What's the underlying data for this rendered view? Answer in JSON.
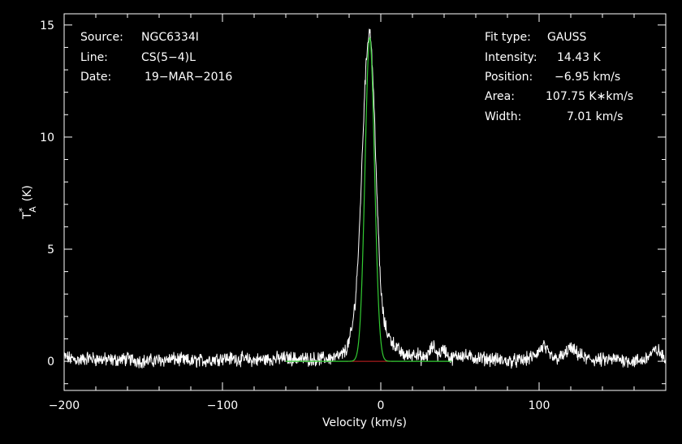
{
  "chart_data": {
    "type": "line",
    "xlabel": "Velocity (km/s)",
    "ylabel_main": "T",
    "ylabel_sup": "*",
    "ylabel_sub": "A",
    "ylabel_unit": "(K)",
    "xlim": [
      -200,
      180
    ],
    "ylim": [
      -1.3,
      15.5
    ],
    "xticks": [
      -200,
      -100,
      0,
      100
    ],
    "xtick_labels": [
      "−200",
      "−100",
      "0",
      "100"
    ],
    "yticks": [
      0,
      5,
      10,
      15
    ],
    "ytick_labels": [
      "0",
      "5",
      "10",
      "15"
    ],
    "grid": false,
    "colors": {
      "background": "#000000",
      "axes": "#ffffff",
      "spectrum": "#ffffff",
      "fit": "#33cc33",
      "baseline": "#cc2222"
    },
    "info_left": [
      {
        "label": "Source:",
        "value": "NGC6334I"
      },
      {
        "label": "Line:",
        "value": "CS(5−4)L"
      },
      {
        "label": "Date:",
        "value": "19−MAR−2016"
      }
    ],
    "info_right": [
      {
        "label": "Fit type:",
        "value": "GAUSS"
      },
      {
        "label": "Intensity:",
        "value": "14.43 K"
      },
      {
        "label": "Position:",
        "value": "−6.95 km/s"
      },
      {
        "label": "Area:",
        "value": "107.75 K∗km/s"
      },
      {
        "label": "Width:",
        "value": "7.01 km/s"
      }
    ],
    "fit": {
      "amplitude": 14.43,
      "center": -6.95,
      "fwhm": 7.01,
      "area": 107.75
    },
    "series": [
      {
        "name": "spectrum",
        "points": [
          [
            -200,
            0.2
          ],
          [
            -195,
            0.1
          ],
          [
            -190,
            0.05
          ],
          [
            -185,
            0.15
          ],
          [
            -180,
            0.1
          ],
          [
            -170,
            0.05
          ],
          [
            -160,
            0.1
          ],
          [
            -150,
            0.0
          ],
          [
            -140,
            0.05
          ],
          [
            -130,
            0.1
          ],
          [
            -120,
            0.0
          ],
          [
            -110,
            0.05
          ],
          [
            -100,
            0.15
          ],
          [
            -90,
            0.1
          ],
          [
            -80,
            0.05
          ],
          [
            -70,
            0.1
          ],
          [
            -60,
            0.15
          ],
          [
            -50,
            0.1
          ],
          [
            -40,
            0.1
          ],
          [
            -30,
            0.15
          ],
          [
            -25,
            0.25
          ],
          [
            -22,
            0.5
          ],
          [
            -20,
            0.9
          ],
          [
            -18,
            1.5
          ],
          [
            -16,
            2.8
          ],
          [
            -14,
            5.0
          ],
          [
            -12,
            8.6
          ],
          [
            -10,
            12.4
          ],
          [
            -8,
            14.5
          ],
          [
            -7,
            14.8
          ],
          [
            -6,
            14.2
          ],
          [
            -4,
            11.0
          ],
          [
            -2,
            6.5
          ],
          [
            0,
            3.2
          ],
          [
            2,
            1.8
          ],
          [
            4,
            1.3
          ],
          [
            6,
            1.0
          ],
          [
            8,
            0.8
          ],
          [
            10,
            0.6
          ],
          [
            14,
            0.3
          ],
          [
            18,
            0.25
          ],
          [
            22,
            0.4
          ],
          [
            26,
            0.1
          ],
          [
            30,
            0.3
          ],
          [
            33,
            0.7
          ],
          [
            36,
            0.3
          ],
          [
            40,
            0.55
          ],
          [
            44,
            0.1
          ],
          [
            50,
            0.3
          ],
          [
            55,
            0.2
          ],
          [
            60,
            0.15
          ],
          [
            70,
            0.1
          ],
          [
            80,
            0.0
          ],
          [
            90,
            0.05
          ],
          [
            96,
            0.2
          ],
          [
            100,
            0.45
          ],
          [
            103,
            0.7
          ],
          [
            106,
            0.3
          ],
          [
            110,
            0.1
          ],
          [
            116,
            0.25
          ],
          [
            119,
            0.6
          ],
          [
            123,
            0.4
          ],
          [
            130,
            0.1
          ],
          [
            140,
            0.05
          ],
          [
            150,
            0.1
          ],
          [
            160,
            0.0
          ],
          [
            166,
            0.05
          ],
          [
            172,
            0.4
          ],
          [
            175,
            0.5
          ],
          [
            178,
            0.2
          ],
          [
            180,
            0.05
          ]
        ]
      }
    ]
  }
}
